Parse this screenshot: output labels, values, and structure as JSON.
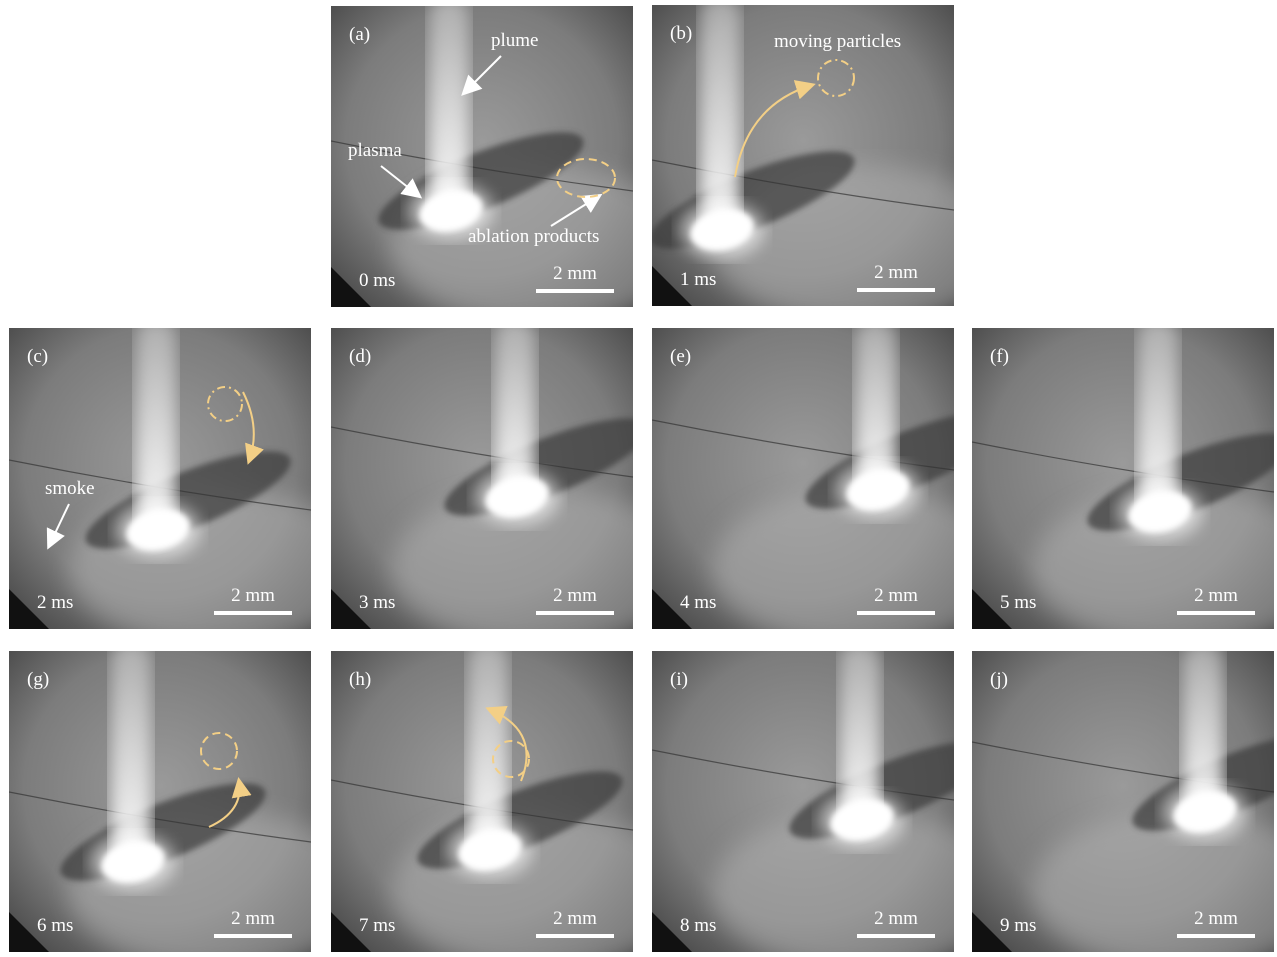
{
  "panels": [
    {
      "label": "(a)",
      "time": "0 ms",
      "scale": "2 mm",
      "annotations": [
        "plume",
        "plasma",
        "ablation products"
      ]
    },
    {
      "label": "(b)",
      "time": "1 ms",
      "scale": "2 mm",
      "annotations": [
        "moving particles"
      ]
    },
    {
      "label": "(c)",
      "time": "2 ms",
      "scale": "2 mm",
      "annotations": [
        "smoke"
      ]
    },
    {
      "label": "(d)",
      "time": "3 ms",
      "scale": "2 mm"
    },
    {
      "label": "(e)",
      "time": "4 ms",
      "scale": "2 mm"
    },
    {
      "label": "(f)",
      "time": "5 ms",
      "scale": "2 mm"
    },
    {
      "label": "(g)",
      "time": "6 ms",
      "scale": "2 mm"
    },
    {
      "label": "(h)",
      "time": "7 ms",
      "scale": "2 mm"
    },
    {
      "label": "(i)",
      "time": "8 ms",
      "scale": "2 mm"
    },
    {
      "label": "(j)",
      "time": "9 ms",
      "scale": "2 mm"
    }
  ]
}
